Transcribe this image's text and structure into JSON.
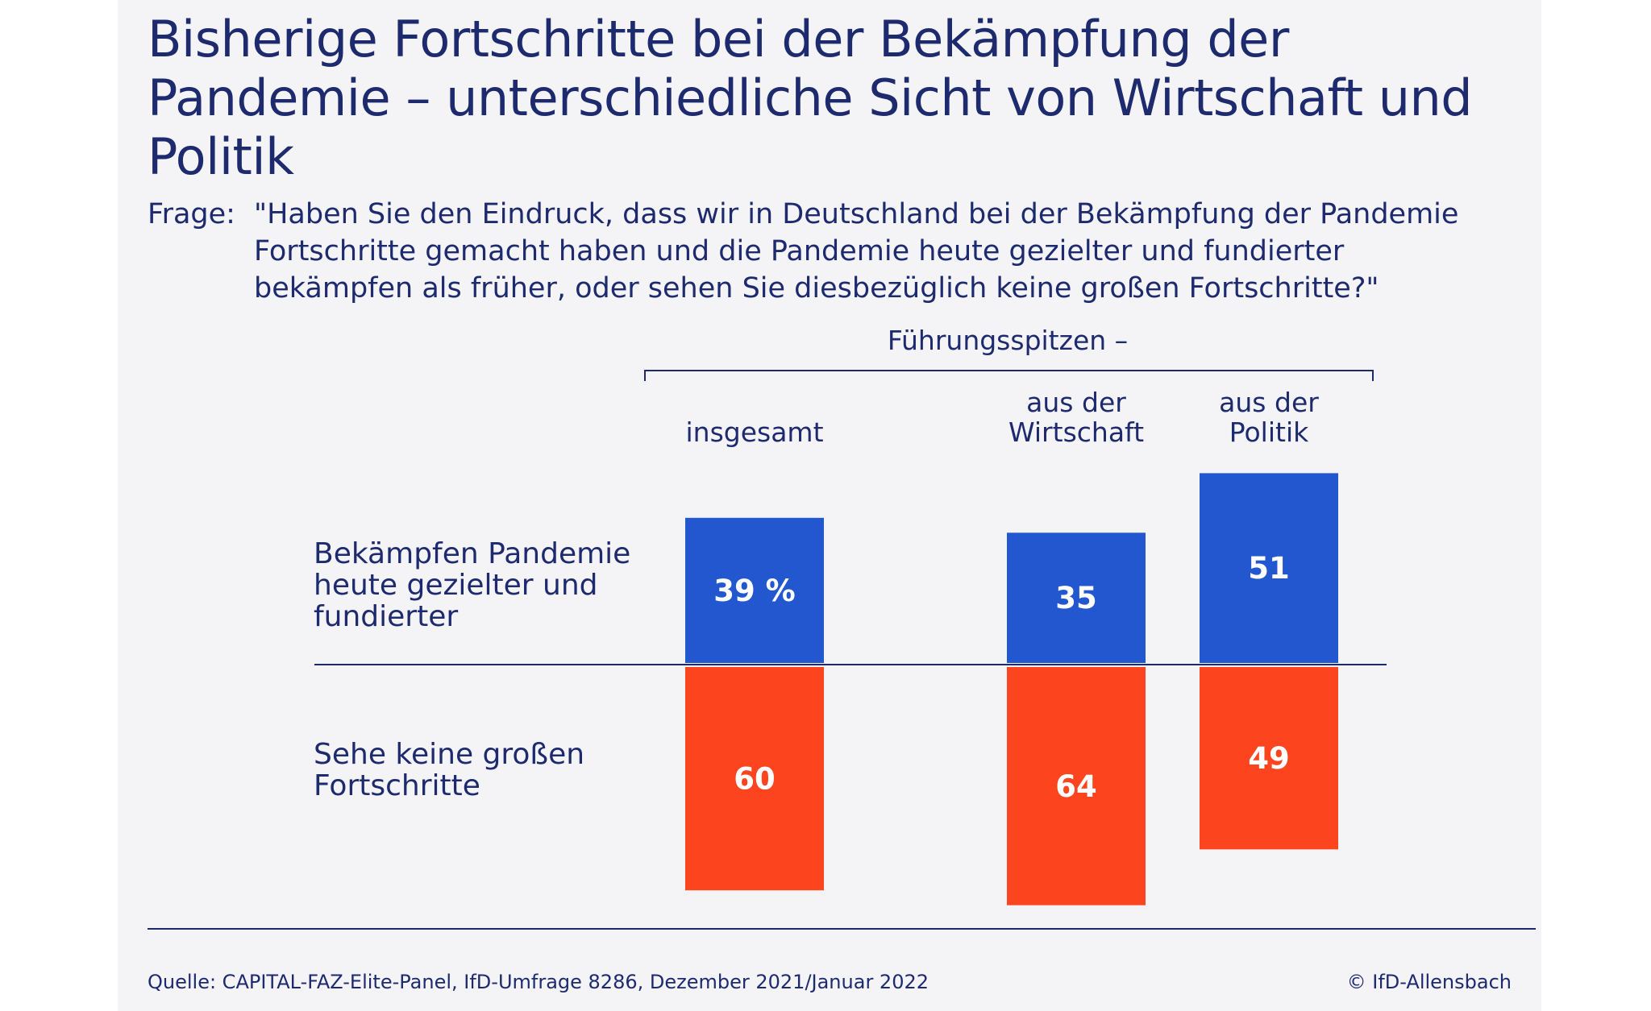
{
  "title": "Bisherige Fortschritte bei der Bekämpfung der Pandemie – unterschiedliche Sicht von Wirtschaft und Politik",
  "question": {
    "prefix": "Frage:",
    "text": "\"Haben Sie den Eindruck, dass wir in Deutschland bei der Bekämpfung der Pandemie Fortschritte gemacht haben und die Pandemie heute gezielter und fundierter bekämpfen als früher, oder sehen Sie diesbezüglich keine großen Fortschritte?\""
  },
  "group_header": "Führungsspitzen –",
  "chart_data": {
    "type": "bar",
    "categories": [
      "insgesamt",
      "aus der Wirtschaft",
      "aus der Politik"
    ],
    "category_lines": [
      [
        "insgesamt"
      ],
      [
        "aus der",
        "Wirtschaft"
      ],
      [
        "aus der",
        "Politik"
      ]
    ],
    "series": [
      {
        "name": "Bekämpfen Pandemie heute gezielter und fundierter",
        "name_lines": [
          "Bekämpfen Pandemie",
          "heute gezielter und",
          "fundierter"
        ],
        "values": [
          39,
          35,
          51
        ],
        "labels": [
          "39 %",
          "35",
          "51"
        ],
        "direction": "up",
        "color": "#2357d0"
      },
      {
        "name": "Sehe keine großen Fortschritte",
        "name_lines": [
          "Sehe keine großen",
          "Fortschritte"
        ],
        "values": [
          60,
          64,
          49
        ],
        "labels": [
          "60",
          "64",
          "49"
        ],
        "direction": "down",
        "color": "#fc441f"
      }
    ],
    "unit": "%",
    "grid": false
  },
  "footer": {
    "source": "Quelle: CAPITAL-FAZ-Elite-Panel, IfD-Umfrage 8286, Dezember 2021/Januar 2022",
    "copyright": "© IfD-Allensbach"
  },
  "colors": {
    "text": "#1d2a6e",
    "positive": "#2357d0",
    "negative": "#fc441f",
    "panel": "#f4f3f6"
  }
}
